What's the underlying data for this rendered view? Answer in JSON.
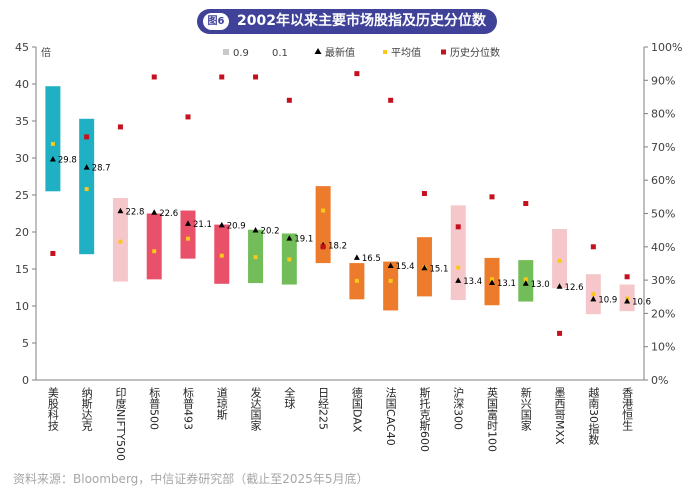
{
  "title": {
    "badge": "图6",
    "text": "2002年以来主要市场股指及历史分位数"
  },
  "source": "资料来源：Bloomberg，中信证券研究部（截止至2025年5月底）",
  "colors": {
    "teal": "#1fb0c4",
    "pink": "#f5c7ca",
    "red": "#e95069",
    "green": "#72bd5a",
    "orange": "#ec7b2b",
    "mean": "#f9c81b",
    "pct": "#c5101f",
    "latest": "#000000"
  },
  "chart_data": {
    "type": "range-bar",
    "title": "2002年以来主要市场股指及历史分位数",
    "ylabel": "倍",
    "ylim": [
      0,
      45
    ],
    "y_ticks": [
      "0",
      "5",
      "10",
      "15",
      "20",
      "25",
      "30",
      "35",
      "40",
      "45"
    ],
    "y2lim": [
      0,
      100
    ],
    "y2_ticks": [
      "0%",
      "10%",
      "20%",
      "30%",
      "40%",
      "50%",
      "60%",
      "70%",
      "80%",
      "90%",
      "100%"
    ],
    "legend": [
      "0.9",
      "0.1",
      "最新值",
      "平均值",
      "历史分位数"
    ],
    "categories": [
      "美股科技",
      "纳斯达克",
      "印度NIFTY500",
      "标普500",
      "标普493",
      "道琼斯",
      "发达国家",
      "全球",
      "日经225",
      "德国DAX",
      "法国CAC40",
      "斯托克斯600",
      "沪深300",
      "英国富时100",
      "新兴国家",
      "墨西哥MXX",
      "越南30指数",
      "香港恒生"
    ],
    "color_keys": [
      "teal",
      "teal",
      "pink",
      "red",
      "red",
      "red",
      "green",
      "green",
      "orange",
      "orange",
      "orange",
      "orange",
      "pink",
      "orange",
      "green",
      "pink",
      "pink",
      "pink"
    ],
    "q90": [
      39.7,
      35.3,
      24.6,
      22.5,
      22.9,
      21.0,
      20.3,
      19.8,
      26.2,
      15.8,
      16.0,
      19.3,
      23.6,
      16.5,
      16.2,
      20.4,
      14.3,
      12.9
    ],
    "q10": [
      25.5,
      17.0,
      13.3,
      13.6,
      16.4,
      13.0,
      13.1,
      12.9,
      15.8,
      10.9,
      9.4,
      11.3,
      10.8,
      10.1,
      10.6,
      12.4,
      8.9,
      9.3
    ],
    "latest": [
      29.8,
      28.7,
      22.8,
      22.6,
      21.1,
      20.9,
      20.2,
      19.1,
      18.2,
      16.5,
      15.4,
      15.1,
      13.4,
      13.1,
      13.0,
      12.6,
      10.9,
      10.6
    ],
    "latest_labels": [
      "29.8",
      "28.7",
      "22.8",
      "22.6",
      "21.1",
      "20.9",
      "20.2",
      "19.1",
      "18.2",
      "16.5",
      "15.4",
      "15.1",
      "13.4",
      "13.1",
      "13.0",
      "12.6",
      "10.9",
      "10.6"
    ],
    "mean": [
      31.9,
      25.8,
      18.7,
      17.4,
      19.1,
      16.8,
      16.6,
      16.3,
      22.9,
      13.4,
      13.4,
      15.2,
      15.2,
      13.6,
      13.6,
      16.1,
      11.6,
      11.0
    ],
    "percentile": [
      38,
      73,
      76,
      91,
      79,
      91,
      91,
      84,
      40,
      92,
      84,
      56,
      46,
      55,
      53,
      14,
      40,
      31
    ]
  }
}
